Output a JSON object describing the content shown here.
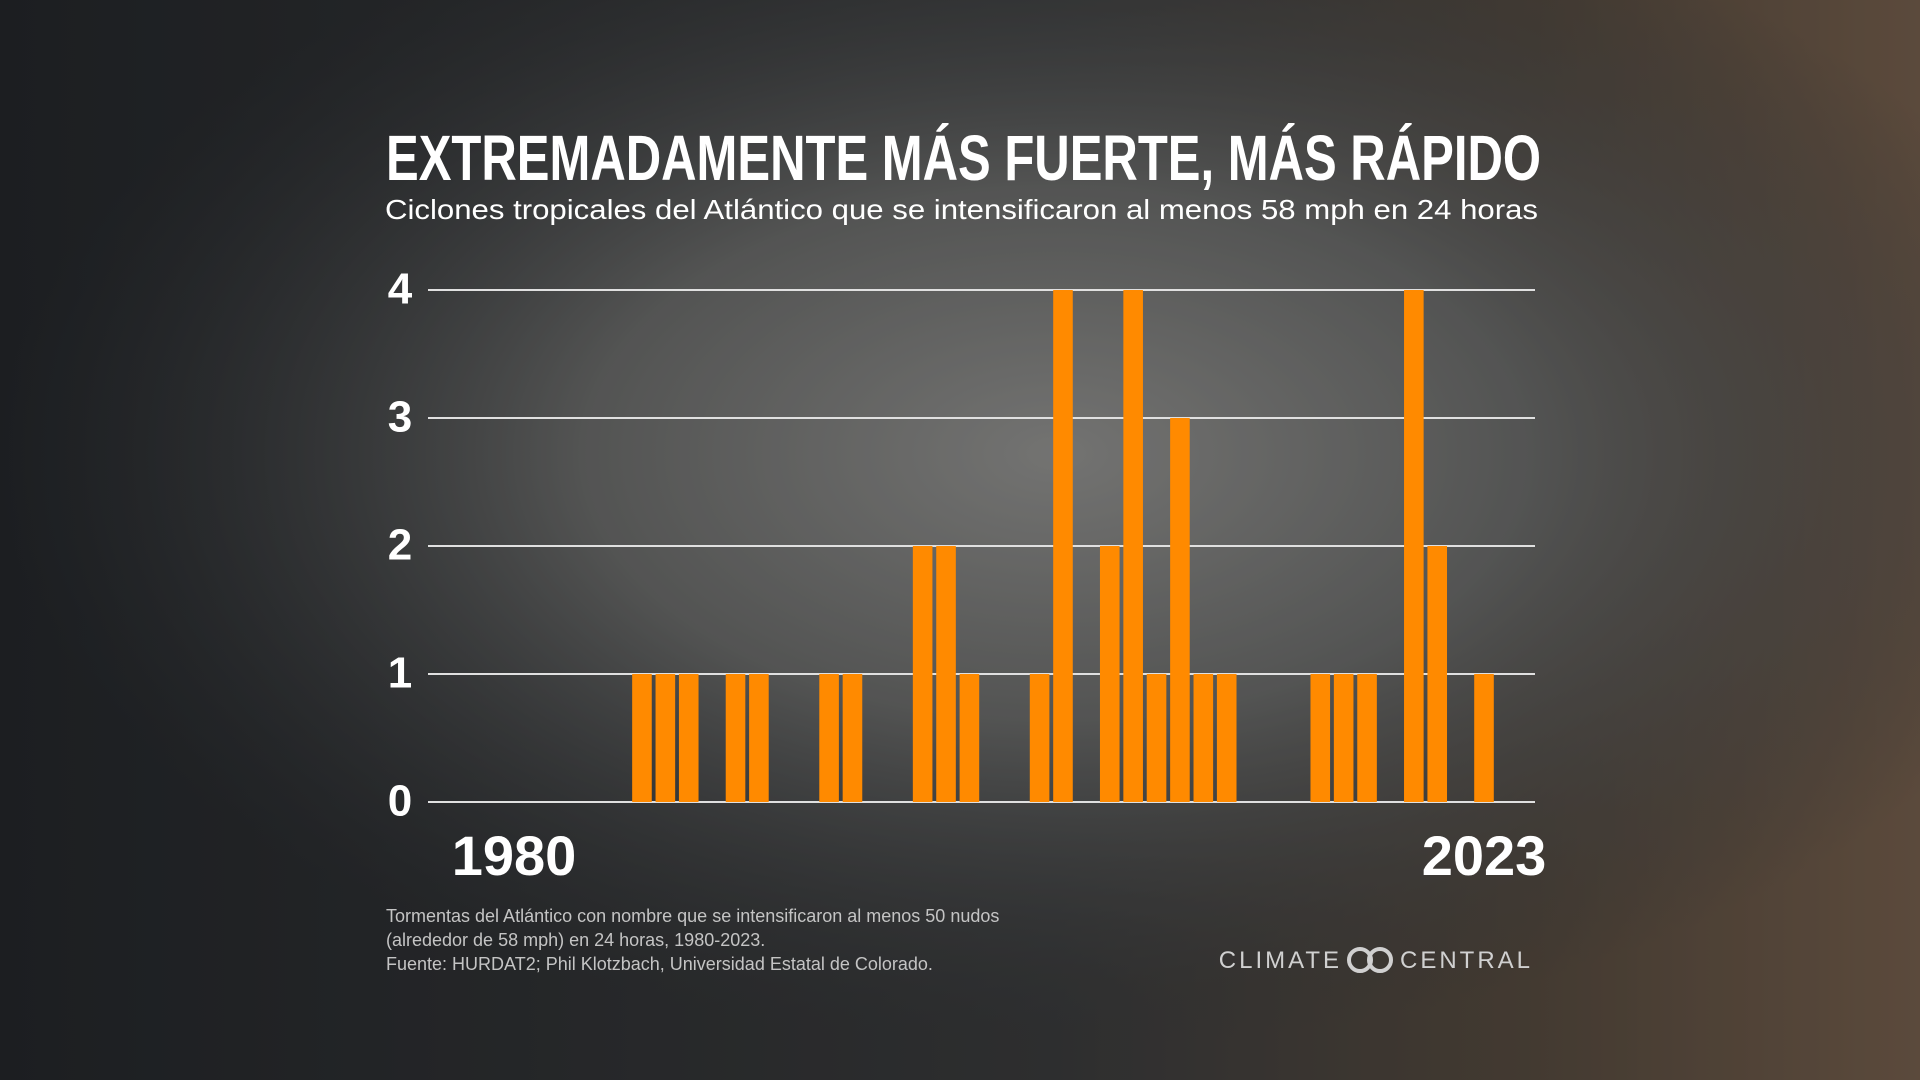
{
  "chart_data": {
    "type": "bar",
    "title": "EXTREMADAMENTE MÁS FUERTE, MÁS RÁPIDO",
    "subtitle": "Ciclones tropicales del Atlántico que se intensificaron al menos 58 mph en 24 horas",
    "categories": [
      "1980",
      null,
      null,
      null,
      null,
      null,
      null,
      null,
      null,
      null,
      null,
      null,
      null,
      null,
      null,
      null,
      null,
      null,
      null,
      null,
      null,
      null,
      null,
      null,
      null,
      null,
      null,
      null,
      null,
      null,
      null,
      null,
      null,
      null,
      null,
      null,
      null,
      null,
      null,
      null,
      null,
      null,
      null,
      "2023"
    ],
    "values": [
      0,
      0,
      0,
      0,
      0,
      0,
      0,
      1,
      1,
      1,
      0,
      1,
      1,
      0,
      0,
      1,
      1,
      0,
      0,
      2,
      2,
      1,
      0,
      0,
      1,
      4,
      0,
      2,
      4,
      1,
      3,
      1,
      1,
      0,
      0,
      0,
      1,
      1,
      1,
      0,
      4,
      2,
      0,
      1
    ],
    "color": "#ff8a00",
    "ylim": [
      0,
      4
    ],
    "yticks": [
      0,
      1,
      2,
      3,
      4
    ],
    "grid": true,
    "notes": [
      "Tormentas del Atlántico con nombre que se intensificaron al menos 50 nudos",
      "(alrededor de 58 mph) en 24 horas, 1980-2023.",
      "Fuente: HURDAT2; Phil Klotzbach, Universidad Estatal de Colorado."
    ],
    "brand": [
      "CLIMATE",
      "CENTRAL"
    ]
  }
}
